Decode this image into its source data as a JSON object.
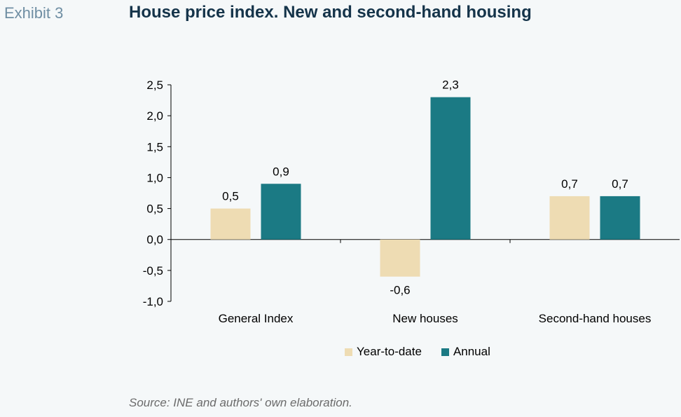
{
  "header": {
    "exhibit": "Exhibit 3",
    "title": "House price index. New and second-hand housing"
  },
  "colors": {
    "year_to_date": "#eedcb3",
    "annual": "#1b7a84",
    "background": "#f5f8f9"
  },
  "chart_data": {
    "type": "bar",
    "categories": [
      "General Index",
      "New houses",
      "Second-hand houses"
    ],
    "series": [
      {
        "name": "Year-to-date",
        "values": [
          0.5,
          -0.6,
          0.7
        ],
        "labels": [
          "0,5",
          "-0,6",
          "0,7"
        ]
      },
      {
        "name": "Annual",
        "values": [
          0.9,
          2.3,
          0.7
        ],
        "labels": [
          "0,9",
          "2,3",
          "0,7"
        ]
      }
    ],
    "yticks": [
      2.5,
      2.0,
      1.5,
      1.0,
      0.5,
      0.0,
      -0.5,
      -1.0
    ],
    "ytick_labels": [
      "2,5",
      "2,0",
      "1,5",
      "1,0",
      "0,5",
      "0,0",
      "-0,5",
      "-1,0"
    ],
    "ylim": [
      -1.0,
      2.5
    ],
    "grid": false,
    "legend_position": "bottom"
  },
  "footer": {
    "source": "Source: INE and authors' own elaboration."
  }
}
